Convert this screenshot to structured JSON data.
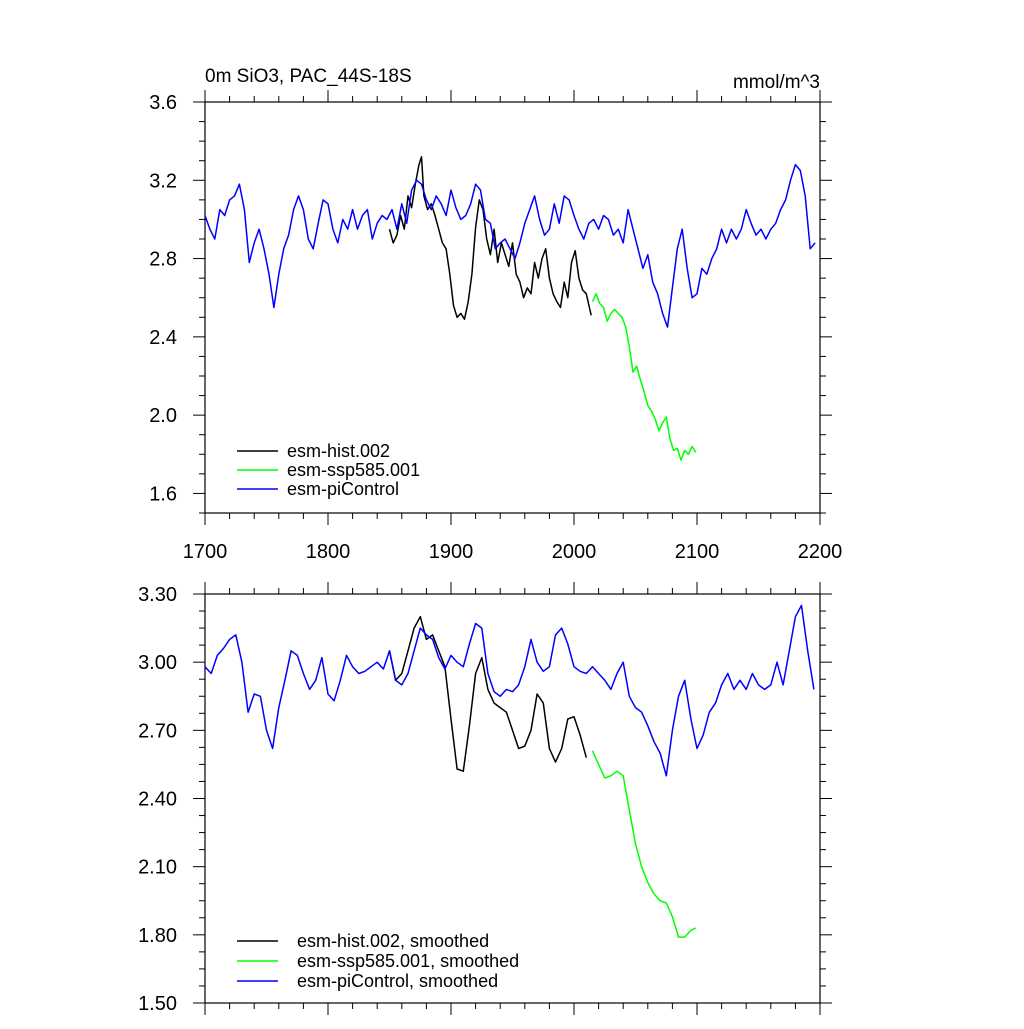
{
  "chart_data": [
    {
      "type": "line",
      "title": "0m SiO3, PAC_44S-18S",
      "units": "mmol/m^3",
      "xlabel": "",
      "ylabel": "",
      "xlim": [
        1700,
        2200
      ],
      "ylim": [
        1.5,
        3.6
      ],
      "xticks": [
        1700,
        1800,
        1900,
        2000,
        2100,
        2200
      ],
      "xtick_labels": [
        "1700",
        "1800",
        "1900",
        "2000",
        "2100",
        "2200"
      ],
      "yticks": [
        1.6,
        2.0,
        2.4,
        2.8,
        3.2,
        3.6
      ],
      "ytick_labels": [
        "1.6",
        "2.0",
        "2.4",
        "2.8",
        "3.2",
        "3.6"
      ],
      "legend_position": "bottom-left",
      "series": [
        {
          "name": "esm-hist.002",
          "color": "#000000",
          "x": [
            1850,
            1853,
            1856,
            1859,
            1862,
            1865,
            1868,
            1871,
            1874,
            1876,
            1878,
            1881,
            1884,
            1887,
            1890,
            1893,
            1896,
            1899,
            1902,
            1905,
            1908,
            1911,
            1914,
            1917,
            1920,
            1923,
            1926,
            1929,
            1932,
            1935,
            1938,
            1941,
            1944,
            1947,
            1950,
            1953,
            1956,
            1959,
            1962,
            1965,
            1968,
            1971,
            1974,
            1977,
            1980,
            1983,
            1986,
            1989,
            1992,
            1995,
            1998,
            2001,
            2004,
            2007,
            2010,
            2014
          ],
          "values": [
            2.95,
            2.88,
            2.92,
            3.02,
            2.95,
            3.12,
            3.06,
            3.18,
            3.28,
            3.32,
            3.12,
            3.05,
            3.08,
            3.02,
            2.95,
            2.88,
            2.85,
            2.72,
            2.56,
            2.5,
            2.52,
            2.49,
            2.58,
            2.72,
            2.96,
            3.1,
            3.05,
            2.9,
            2.82,
            2.95,
            2.78,
            2.88,
            2.82,
            2.76,
            2.88,
            2.72,
            2.68,
            2.6,
            2.65,
            2.62,
            2.78,
            2.7,
            2.8,
            2.85,
            2.7,
            2.62,
            2.58,
            2.55,
            2.68,
            2.6,
            2.78,
            2.84,
            2.7,
            2.64,
            2.62,
            2.51
          ]
        },
        {
          "name": "esm-ssp585.001",
          "color": "#00ff00",
          "x": [
            2015,
            2018,
            2021,
            2024,
            2027,
            2030,
            2033,
            2036,
            2039,
            2042,
            2045,
            2048,
            2051,
            2054,
            2057,
            2060,
            2063,
            2066,
            2069,
            2072,
            2075,
            2078,
            2081,
            2084,
            2087,
            2090,
            2093,
            2096,
            2099
          ],
          "values": [
            2.58,
            2.62,
            2.57,
            2.55,
            2.48,
            2.52,
            2.54,
            2.52,
            2.5,
            2.45,
            2.35,
            2.22,
            2.25,
            2.18,
            2.12,
            2.05,
            2.02,
            1.98,
            1.92,
            1.96,
            1.99,
            1.88,
            1.82,
            1.83,
            1.77,
            1.82,
            1.8,
            1.84,
            1.81
          ]
        },
        {
          "name": "esm-piControl",
          "color": "#0000ff",
          "x": [
            1700,
            1704,
            1708,
            1712,
            1716,
            1720,
            1724,
            1728,
            1732,
            1736,
            1740,
            1744,
            1748,
            1752,
            1756,
            1760,
            1764,
            1768,
            1772,
            1776,
            1780,
            1784,
            1788,
            1792,
            1796,
            1800,
            1804,
            1808,
            1812,
            1816,
            1820,
            1824,
            1828,
            1832,
            1836,
            1840,
            1844,
            1848,
            1852,
            1856,
            1860,
            1864,
            1868,
            1872,
            1876,
            1880,
            1884,
            1888,
            1892,
            1896,
            1900,
            1904,
            1908,
            1912,
            1916,
            1920,
            1924,
            1928,
            1932,
            1936,
            1940,
            1944,
            1948,
            1952,
            1956,
            1960,
            1964,
            1968,
            1972,
            1976,
            1980,
            1984,
            1988,
            1992,
            1996,
            2000,
            2004,
            2008,
            2012,
            2016,
            2020,
            2024,
            2028,
            2032,
            2036,
            2040,
            2044,
            2048,
            2052,
            2056,
            2060,
            2064,
            2068,
            2072,
            2076,
            2080,
            2084,
            2088,
            2092,
            2096,
            2100,
            2104,
            2108,
            2112,
            2116,
            2120,
            2124,
            2128,
            2132,
            2136,
            2140,
            2144,
            2148,
            2152,
            2156,
            2160,
            2164,
            2168,
            2172,
            2176,
            2180,
            2184,
            2188,
            2192,
            2196
          ],
          "values": [
            3.02,
            2.95,
            2.9,
            3.05,
            3.02,
            3.1,
            3.12,
            3.18,
            3.05,
            2.78,
            2.88,
            2.95,
            2.85,
            2.72,
            2.55,
            2.72,
            2.85,
            2.92,
            3.05,
            3.12,
            3.05,
            2.9,
            2.85,
            2.98,
            3.1,
            3.08,
            2.95,
            2.88,
            3.0,
            2.95,
            3.05,
            2.95,
            3.02,
            3.05,
            2.9,
            2.98,
            3.02,
            3.0,
            3.05,
            2.95,
            3.08,
            2.98,
            3.15,
            3.2,
            3.18,
            3.1,
            3.05,
            3.12,
            3.08,
            3.02,
            3.15,
            3.06,
            3.0,
            3.02,
            3.08,
            3.18,
            3.15,
            3.0,
            2.98,
            2.85,
            2.88,
            2.9,
            2.85,
            2.8,
            2.88,
            2.98,
            3.05,
            3.12,
            3.0,
            2.92,
            2.95,
            3.08,
            2.98,
            3.12,
            3.1,
            3.02,
            2.95,
            2.9,
            2.98,
            3.0,
            2.95,
            3.02,
            3.0,
            2.92,
            2.95,
            2.88,
            3.05,
            2.95,
            2.85,
            2.75,
            2.82,
            2.68,
            2.62,
            2.52,
            2.45,
            2.65,
            2.85,
            2.95,
            2.75,
            2.6,
            2.62,
            2.75,
            2.72,
            2.8,
            2.85,
            2.95,
            2.88,
            2.95,
            2.9,
            2.95,
            3.05,
            2.98,
            2.92,
            2.95,
            2.9,
            2.95,
            2.98,
            3.05,
            3.1,
            3.2,
            3.28,
            3.25,
            3.12,
            2.85,
            2.88
          ]
        }
      ]
    },
    {
      "type": "line",
      "title": "",
      "xlabel": "",
      "ylabel": "",
      "xlim": [
        1700,
        2200
      ],
      "ylim": [
        1.5,
        3.3
      ],
      "xticks": [
        1700,
        1800,
        1900,
        2000,
        2100,
        2200
      ],
      "yticks": [
        1.5,
        1.8,
        2.1,
        2.4,
        2.7,
        3.0,
        3.3
      ],
      "ytick_labels": [
        "1.50",
        "1.80",
        "2.10",
        "2.40",
        "2.70",
        "3.00",
        "3.30"
      ],
      "legend_position": "bottom-left",
      "series": [
        {
          "name": "esm-hist.002, smoothed",
          "color": "#000000",
          "x": [
            1850,
            1855,
            1860,
            1865,
            1870,
            1875,
            1880,
            1885,
            1890,
            1895,
            1900,
            1905,
            1910,
            1915,
            1920,
            1925,
            1930,
            1935,
            1940,
            1945,
            1950,
            1955,
            1960,
            1965,
            1970,
            1975,
            1980,
            1985,
            1990,
            1995,
            2000,
            2005,
            2010
          ],
          "values": [
            3.05,
            2.92,
            2.95,
            3.05,
            3.15,
            3.2,
            3.1,
            3.12,
            3.05,
            2.98,
            2.75,
            2.53,
            2.52,
            2.72,
            2.95,
            3.02,
            2.88,
            2.82,
            2.8,
            2.78,
            2.7,
            2.62,
            2.63,
            2.7,
            2.86,
            2.82,
            2.62,
            2.56,
            2.62,
            2.75,
            2.76,
            2.68,
            2.58
          ]
        },
        {
          "name": "esm-ssp585.001, smoothed",
          "color": "#00ff00",
          "x": [
            2015,
            2020,
            2025,
            2030,
            2035,
            2040,
            2045,
            2050,
            2055,
            2060,
            2065,
            2070,
            2075,
            2080,
            2085,
            2090,
            2095,
            2099
          ],
          "values": [
            2.61,
            2.55,
            2.49,
            2.5,
            2.52,
            2.5,
            2.35,
            2.2,
            2.1,
            2.03,
            1.98,
            1.95,
            1.94,
            1.88,
            1.79,
            1.79,
            1.82,
            1.83
          ]
        },
        {
          "name": "esm-piControl, smoothed",
          "color": "#0000ff",
          "x": [
            1700,
            1705,
            1710,
            1715,
            1720,
            1725,
            1730,
            1735,
            1740,
            1745,
            1750,
            1755,
            1760,
            1765,
            1770,
            1775,
            1780,
            1785,
            1790,
            1795,
            1800,
            1805,
            1810,
            1815,
            1820,
            1825,
            1830,
            1835,
            1840,
            1845,
            1850,
            1855,
            1860,
            1865,
            1870,
            1875,
            1880,
            1885,
            1890,
            1895,
            1900,
            1905,
            1910,
            1915,
            1920,
            1925,
            1930,
            1935,
            1940,
            1945,
            1950,
            1955,
            1960,
            1965,
            1970,
            1975,
            1980,
            1985,
            1990,
            1995,
            2000,
            2005,
            2010,
            2015,
            2020,
            2025,
            2030,
            2035,
            2040,
            2045,
            2050,
            2055,
            2060,
            2065,
            2070,
            2075,
            2080,
            2085,
            2090,
            2095,
            2100,
            2105,
            2110,
            2115,
            2120,
            2125,
            2130,
            2135,
            2140,
            2145,
            2150,
            2155,
            2160,
            2165,
            2170,
            2175,
            2180,
            2185,
            2190,
            2195
          ],
          "values": [
            2.98,
            2.95,
            3.03,
            3.06,
            3.1,
            3.12,
            3.0,
            2.78,
            2.86,
            2.85,
            2.7,
            2.62,
            2.8,
            2.92,
            3.05,
            3.03,
            2.95,
            2.88,
            2.92,
            3.02,
            2.86,
            2.83,
            2.92,
            3.03,
            2.98,
            2.95,
            2.96,
            2.98,
            3.0,
            2.97,
            3.05,
            2.92,
            2.9,
            2.95,
            3.05,
            3.15,
            3.12,
            3.1,
            3.02,
            2.97,
            3.03,
            3.0,
            2.98,
            3.08,
            3.17,
            3.15,
            2.95,
            2.87,
            2.85,
            2.88,
            2.87,
            2.9,
            2.98,
            3.1,
            3.0,
            2.96,
            2.98,
            3.12,
            3.15,
            3.08,
            2.98,
            2.96,
            2.95,
            2.98,
            2.95,
            2.92,
            2.88,
            2.95,
            3.0,
            2.85,
            2.8,
            2.78,
            2.72,
            2.65,
            2.6,
            2.5,
            2.7,
            2.85,
            2.92,
            2.75,
            2.62,
            2.68,
            2.78,
            2.82,
            2.9,
            2.95,
            2.88,
            2.92,
            2.88,
            2.95,
            2.9,
            2.88,
            2.9,
            3.0,
            2.9,
            3.05,
            3.2,
            3.25,
            3.05,
            2.88
          ]
        }
      ]
    }
  ]
}
